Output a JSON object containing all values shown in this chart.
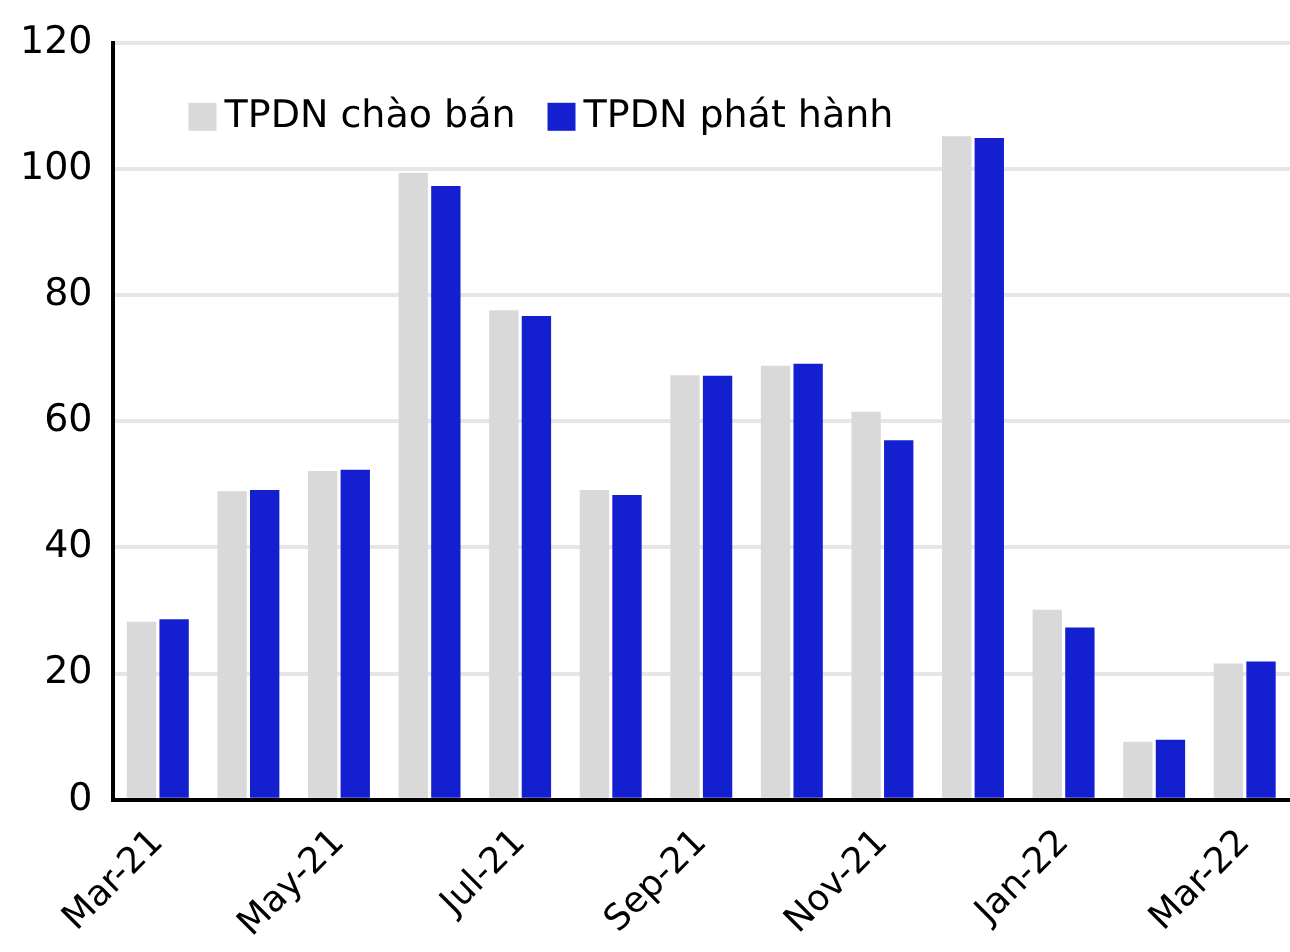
{
  "chart_data": {
    "type": "bar",
    "categories": [
      "Mar-21",
      null,
      "May-21",
      null,
      "Jul-21",
      null,
      "Sep-21",
      null,
      "Nov-21",
      null,
      "Jan-22",
      null,
      "Mar-22"
    ],
    "series": [
      {
        "name": "TPDN chào bán",
        "color": "#d9d9d9",
        "values": [
          28.2,
          48.9,
          52.1,
          99.4,
          77.6,
          49.1,
          67.3,
          68.8,
          61.5,
          105.2,
          30.1,
          9.2,
          21.6
        ]
      },
      {
        "name": "TPDN phát hành",
        "color": "#1420d0",
        "values": [
          28.6,
          49.1,
          52.3,
          97.3,
          76.7,
          48.3,
          67.2,
          69.1,
          57.0,
          104.9,
          27.3,
          9.5,
          21.9
        ]
      }
    ],
    "ylim": [
      0,
      120
    ],
    "yticks": [
      0,
      20,
      40,
      60,
      80,
      100,
      120
    ],
    "grid": "y",
    "legend": "top left"
  }
}
